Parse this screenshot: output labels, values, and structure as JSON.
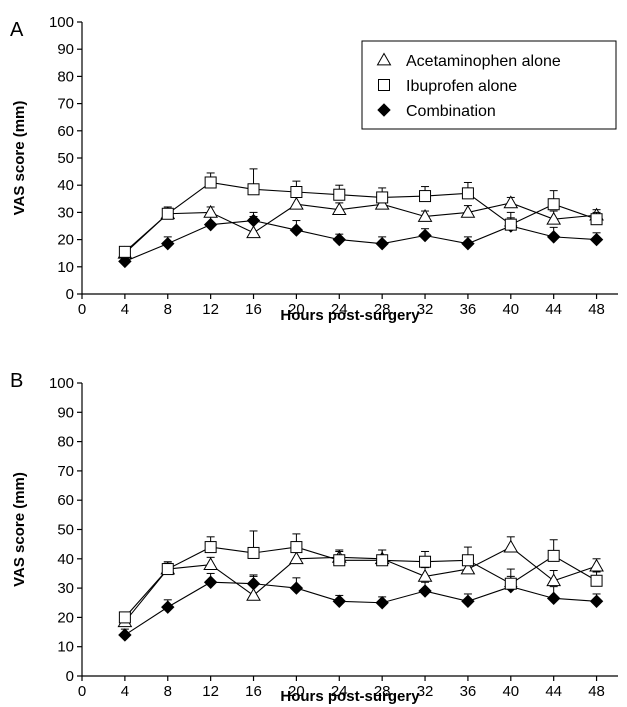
{
  "chart_data": [
    {
      "type": "line",
      "panel_label": "A",
      "xlabel": "Hours post-surgery",
      "ylabel": "VAS score (mm)",
      "xlim": [
        0,
        50
      ],
      "ylim": [
        0,
        100
      ],
      "x_ticks": [
        "0",
        "4",
        "8",
        "12",
        "16",
        "20",
        "24",
        "28",
        "32",
        "36",
        "40",
        "44",
        "48"
      ],
      "y_ticks": [
        "0",
        "10",
        "20",
        "30",
        "40",
        "50",
        "60",
        "70",
        "80",
        "90",
        "100"
      ],
      "grid": false,
      "legend_position": "top-right",
      "x": [
        4,
        8,
        12,
        16,
        20,
        24,
        28,
        32,
        36,
        40,
        44,
        48
      ],
      "series": [
        {
          "name": "Acetaminophen alone",
          "marker": "open-triangle",
          "values": [
            15,
            29.5,
            30,
            22.5,
            33,
            31,
            33,
            28.5,
            30,
            33.5,
            27.5,
            29
          ],
          "err": [
            1.5,
            2,
            2,
            6,
            3,
            2.5,
            3,
            2,
            2.5,
            2,
            3,
            2
          ]
        },
        {
          "name": "Ibuprofen alone",
          "marker": "open-square",
          "values": [
            15.5,
            29.5,
            41,
            38.5,
            37.5,
            36.5,
            35.5,
            36,
            37,
            25.5,
            33,
            27.5
          ],
          "err": [
            1.5,
            2.5,
            3.5,
            7.5,
            4,
            3.5,
            3.5,
            3.5,
            4,
            4.5,
            5,
            2.5
          ]
        },
        {
          "name": "Combination",
          "marker": "filled-diamond",
          "values": [
            12,
            18.5,
            25.5,
            27,
            23.5,
            20,
            18.5,
            21.5,
            18.5,
            25,
            21,
            20
          ],
          "err": [
            2,
            2.5,
            3,
            3,
            3.5,
            2,
            2.5,
            2.5,
            2.5,
            3,
            3.5,
            2.5
          ]
        }
      ]
    },
    {
      "type": "line",
      "panel_label": "B",
      "xlabel": "Hours post-surgery",
      "ylabel": "VAS score (mm)",
      "xlim": [
        0,
        50
      ],
      "ylim": [
        0,
        100
      ],
      "x_ticks": [
        "0",
        "4",
        "8",
        "12",
        "16",
        "20",
        "24",
        "28",
        "32",
        "36",
        "40",
        "44",
        "48"
      ],
      "y_ticks": [
        "0",
        "10",
        "20",
        "30",
        "40",
        "50",
        "60",
        "70",
        "80",
        "90",
        "100"
      ],
      "grid": false,
      "x": [
        4,
        8,
        12,
        16,
        20,
        24,
        28,
        32,
        36,
        40,
        44,
        48
      ],
      "series": [
        {
          "name": "Acetaminophen alone",
          "marker": "open-triangle",
          "values": [
            18.5,
            36.5,
            38,
            27.5,
            40,
            40.5,
            40,
            34,
            36.5,
            44,
            32.5,
            37.5
          ],
          "err": [
            1.5,
            2.5,
            2.5,
            6.5,
            3,
            2.5,
            3,
            3,
            3,
            3.5,
            3.5,
            2.5
          ]
        },
        {
          "name": "Ibuprofen alone",
          "marker": "open-square",
          "values": [
            20,
            36.5,
            44,
            42,
            44,
            39.5,
            39.5,
            39,
            39.5,
            31.5,
            41,
            32.5
          ],
          "err": [
            1.5,
            2,
            3.5,
            7.5,
            4.5,
            3,
            3.5,
            3.5,
            4.5,
            5,
            5.5,
            3
          ]
        },
        {
          "name": "Combination",
          "marker": "filled-diamond",
          "values": [
            14,
            23.5,
            32,
            31.5,
            30,
            25.5,
            25,
            29,
            25.5,
            30.5,
            26.5,
            25.5
          ],
          "err": [
            2,
            2.5,
            3,
            3,
            3.5,
            2,
            2,
            3,
            2.5,
            3.5,
            4,
            2.5
          ]
        }
      ]
    }
  ]
}
